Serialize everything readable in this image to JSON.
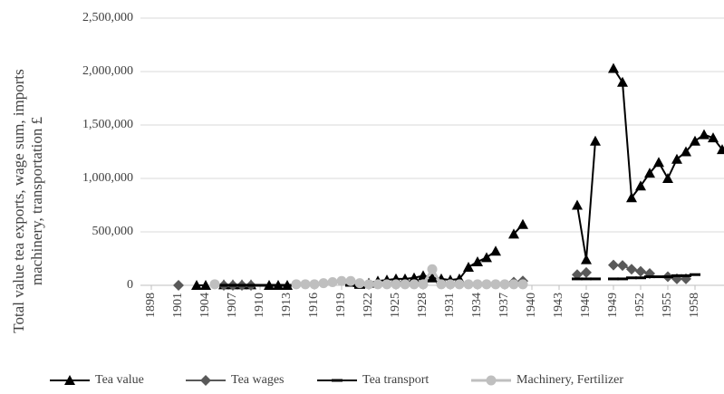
{
  "chart_data": {
    "type": "line",
    "ylabel": [
      "Total value tea exports, wage sum, imports",
      "machinery, transportation £"
    ],
    "x": [
      1898,
      1899,
      1900,
      1901,
      1902,
      1903,
      1904,
      1905,
      1906,
      1907,
      1908,
      1909,
      1910,
      1911,
      1912,
      1913,
      1914,
      1915,
      1916,
      1917,
      1918,
      1919,
      1920,
      1921,
      1922,
      1923,
      1924,
      1925,
      1926,
      1927,
      1928,
      1929,
      1930,
      1931,
      1932,
      1933,
      1934,
      1935,
      1936,
      1937,
      1938,
      1939,
      1940,
      1941,
      1942,
      1943,
      1944,
      1945,
      1946,
      1947,
      1948,
      1949,
      1950,
      1951,
      1952,
      1953,
      1954,
      1955,
      1956,
      1957,
      1958,
      1959,
      1960,
      1961
    ],
    "series": [
      {
        "name": "Tea value",
        "color": "#000000",
        "marker": "triangle",
        "values": [
          null,
          null,
          null,
          null,
          null,
          0,
          0,
          null,
          5000,
          5000,
          5000,
          5000,
          null,
          0,
          0,
          0,
          null,
          null,
          null,
          null,
          null,
          null,
          null,
          null,
          20000,
          40000,
          50000,
          60000,
          60000,
          70000,
          90000,
          70000,
          60000,
          50000,
          60000,
          170000,
          220000,
          260000,
          320000,
          null,
          480000,
          570000,
          null,
          null,
          null,
          null,
          null,
          750000,
          240000,
          1350000,
          null,
          2030000,
          1900000,
          820000,
          930000,
          1050000,
          1150000,
          1000000,
          1180000,
          1250000,
          1350000,
          1410000,
          1380000,
          1270000
        ]
      },
      {
        "name": "Tea wages",
        "color": "#595959",
        "marker": "diamond",
        "values": [
          null,
          null,
          null,
          0,
          null,
          null,
          null,
          null,
          0,
          0,
          0,
          0,
          null,
          null,
          null,
          null,
          null,
          null,
          null,
          null,
          null,
          null,
          null,
          null,
          null,
          null,
          null,
          null,
          null,
          null,
          null,
          null,
          null,
          null,
          null,
          null,
          null,
          null,
          null,
          null,
          30000,
          40000,
          null,
          null,
          null,
          null,
          null,
          100000,
          120000,
          null,
          null,
          190000,
          185000,
          150000,
          130000,
          110000,
          null,
          80000,
          60000,
          60000,
          null,
          null,
          null,
          null
        ]
      },
      {
        "name": "Tea transport",
        "color": "#000000",
        "marker": "dash",
        "values": [
          null,
          null,
          null,
          null,
          null,
          null,
          null,
          null,
          0,
          0,
          0,
          0,
          0,
          0,
          0,
          0,
          null,
          null,
          null,
          null,
          null,
          null,
          0,
          -20000,
          null,
          null,
          null,
          null,
          null,
          null,
          null,
          null,
          null,
          null,
          null,
          null,
          null,
          null,
          null,
          null,
          null,
          null,
          null,
          null,
          null,
          null,
          null,
          60000,
          60000,
          60000,
          null,
          60000,
          60000,
          70000,
          70000,
          80000,
          80000,
          80000,
          90000,
          90000,
          100000,
          null,
          null,
          null
        ]
      },
      {
        "name": "Machinery, Fertilizer",
        "color": "#bfbfbf",
        "marker": "circle",
        "values": [
          null,
          null,
          null,
          null,
          null,
          null,
          null,
          10000,
          null,
          null,
          null,
          null,
          null,
          null,
          null,
          null,
          10000,
          10000,
          10000,
          20000,
          30000,
          40000,
          40000,
          20000,
          10000,
          10000,
          10000,
          10000,
          10000,
          10000,
          10000,
          150000,
          10000,
          10000,
          10000,
          10000,
          10000,
          10000,
          10000,
          10000,
          10000,
          10000,
          null,
          null,
          null,
          null,
          null,
          null,
          null,
          null,
          null,
          null,
          null,
          null,
          null,
          null,
          null,
          null,
          null,
          null,
          null,
          null,
          null,
          null
        ]
      }
    ],
    "xlim": [
      1896.8,
      1961.2
    ],
    "xticks": [
      1898,
      1901,
      1904,
      1907,
      1910,
      1913,
      1916,
      1919,
      1922,
      1925,
      1928,
      1931,
      1934,
      1937,
      1940,
      1943,
      1946,
      1949,
      1952,
      1955,
      1958
    ],
    "ylim": [
      0,
      2500000
    ],
    "yticks": [
      0,
      {
        "value": 500000,
        "label": "500,000"
      },
      {
        "value": 1000000,
        "label": "1,000,000"
      },
      {
        "value": 1500000,
        "label": "1,500,000"
      },
      {
        "value": 2000000,
        "label": "2,000,000"
      },
      {
        "value": 2500000,
        "label": "2,500,000"
      }
    ],
    "grid": true,
    "legend": "bottom"
  }
}
